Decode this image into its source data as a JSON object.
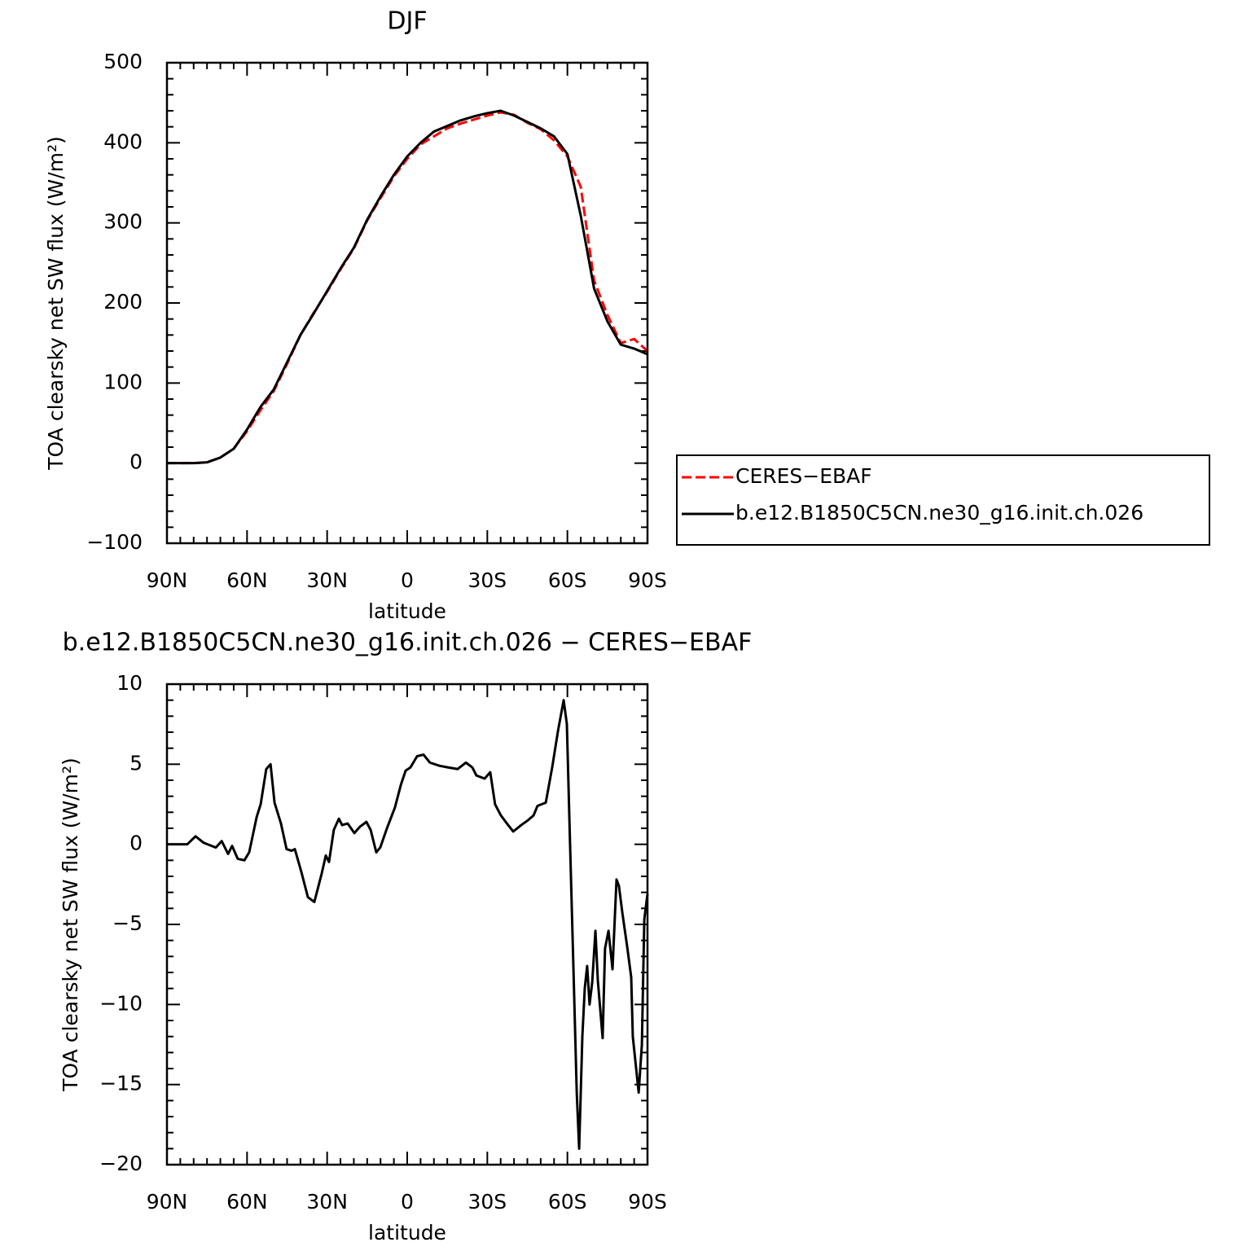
{
  "chart_data": [
    {
      "type": "line",
      "title": "DJF",
      "xlabel": "latitude",
      "ylabel": "TOA clearsky net SW flux (W/m²)",
      "x": [
        90,
        85,
        80,
        75,
        70,
        65,
        60,
        55,
        50,
        45,
        40,
        35,
        30,
        25,
        20,
        15,
        10,
        5,
        0,
        -5,
        -10,
        -15,
        -20,
        -25,
        -30,
        -35,
        -40,
        -45,
        -50,
        -55,
        -60,
        -65,
        -70,
        -75,
        -80,
        -85,
        -90
      ],
      "series": [
        {
          "name": "CERES−EBAF",
          "color": "#ff0000",
          "linestyle": "dashed",
          "values": [
            0,
            0,
            0,
            1,
            7,
            18,
            40,
            66,
            90,
            124,
            160,
            188,
            214,
            242,
            268,
            303,
            331,
            358,
            380,
            398,
            408,
            418,
            424,
            429,
            434,
            438,
            435,
            425,
            417,
            403,
            383,
            345,
            228,
            185,
            150,
            155,
            140
          ]
        },
        {
          "name": "b.e12.B1850C5CN.ne30_g16.init.ch.026",
          "color": "#000000",
          "linestyle": "solid",
          "values": [
            0,
            0,
            0,
            1,
            7,
            18,
            42,
            70,
            92,
            126,
            160,
            187,
            215,
            243,
            269,
            304,
            333,
            360,
            383,
            400,
            414,
            421,
            428,
            433,
            437,
            440,
            434,
            426,
            418,
            408,
            386,
            309,
            218,
            177,
            148,
            143,
            136
          ]
        }
      ],
      "xlim": [
        90,
        -90
      ],
      "xticks": [
        {
          "value": 90,
          "label": "90N"
        },
        {
          "value": 60,
          "label": "60N"
        },
        {
          "value": 30,
          "label": "30N"
        },
        0,
        {
          "value": -30,
          "label": "30S"
        },
        {
          "value": -60,
          "label": "60S"
        },
        {
          "value": -90,
          "label": "90S"
        }
      ],
      "ylim": [
        -100,
        500
      ],
      "yticks": [
        {
          "value": -100,
          "label": "−100"
        },
        0,
        100,
        200,
        300,
        400,
        500
      ],
      "legend": "right"
    },
    {
      "type": "line",
      "title": "b.e12.B1850C5CN.ne30_g16.init.ch.026 − CERES−EBAF",
      "xlabel": "latitude",
      "ylabel": "TOA clearsky net SW flux (W/m²)",
      "x": [
        90,
        82.4,
        79.3,
        76.3,
        71.7,
        69.5,
        67.1,
        65.6,
        63.5,
        61.0,
        59.2,
        56.4,
        54.9,
        52.8,
        51.2,
        49.7,
        47.3,
        45.2,
        43.3,
        42.1,
        39.7,
        37.2,
        34.8,
        32.0,
        30.5,
        29.3,
        27.5,
        25.6,
        24.4,
        22.3,
        19.8,
        17.7,
        15.3,
        13.7,
        11.6,
        10.1,
        7.6,
        4.6,
        2.4,
        0.6,
        -1.2,
        -3.7,
        -6.1,
        -8.5,
        -12.2,
        -15.3,
        -18.9,
        -22.0,
        -24.4,
        -25.9,
        -29.0,
        -31.1,
        -32.9,
        -35.1,
        -37.8,
        -39.7,
        -42.7,
        -45.2,
        -47.3,
        -48.8,
        -51.9,
        -54.3,
        -56.5,
        -58.6,
        -59.8,
        -61.0,
        -62.3,
        -63.5,
        -64.4,
        -65.6,
        -66.5,
        -67.4,
        -68.3,
        -69.3,
        -70.5,
        -71.4,
        -73.2,
        -74.1,
        -75.4,
        -76.9,
        -78.4,
        -79.3,
        -80.6,
        -82.4,
        -83.9,
        -84.5,
        -86.7,
        -87.9,
        -88.8,
        -90
      ],
      "series": [
        {
          "name": "b.e12.B1850C5CN.ne30_g16.init.ch.026 − CERES−EBAF",
          "color": "#000000",
          "linestyle": "solid",
          "values": [
            0,
            0,
            0.5,
            0.1,
            -0.2,
            0.2,
            -0.6,
            -0.1,
            -0.9,
            -1,
            -0.5,
            1.7,
            2.5,
            4.7,
            5,
            2.6,
            1.3,
            -0.3,
            -0.4,
            -0.3,
            -1.7,
            -3.3,
            -3.6,
            -1.8,
            -0.7,
            -1.1,
            0.9,
            1.6,
            1.2,
            1.3,
            0.7,
            1.1,
            1.4,
            0.9,
            -0.5,
            -0.2,
            1,
            2.3,
            3.7,
            4.6,
            4.8,
            5.5,
            5.6,
            5.1,
            4.9,
            4.8,
            4.7,
            5.1,
            4.8,
            4.3,
            4.1,
            4.5,
            2.5,
            1.8,
            1.2,
            0.8,
            1.2,
            1.5,
            1.8,
            2.4,
            2.6,
            4.8,
            7.1,
            9,
            7.5,
            0,
            -8,
            -15.5,
            -19,
            -12,
            -9,
            -7.6,
            -10,
            -8.6,
            -5.4,
            -8.5,
            -12.1,
            -6.5,
            -5.4,
            -7.8,
            -2.2,
            -2.6,
            -4.3,
            -6.4,
            -8.3,
            -12,
            -15.5,
            -12.5,
            -4.7,
            -3.1
          ]
        }
      ],
      "xlim": [
        90,
        -90
      ],
      "xticks": [
        {
          "value": 90,
          "label": "90N"
        },
        {
          "value": 60,
          "label": "60N"
        },
        {
          "value": 30,
          "label": "30N"
        },
        0,
        {
          "value": -30,
          "label": "30S"
        },
        {
          "value": -60,
          "label": "60S"
        },
        {
          "value": -90,
          "label": "90S"
        }
      ],
      "ylim": [
        -20,
        10
      ],
      "yticks": [
        {
          "value": -20,
          "label": "−20"
        },
        {
          "value": -15,
          "label": "−15"
        },
        {
          "value": -10,
          "label": "−10"
        },
        {
          "value": -5,
          "label": "−5"
        },
        0,
        5,
        10
      ]
    }
  ]
}
